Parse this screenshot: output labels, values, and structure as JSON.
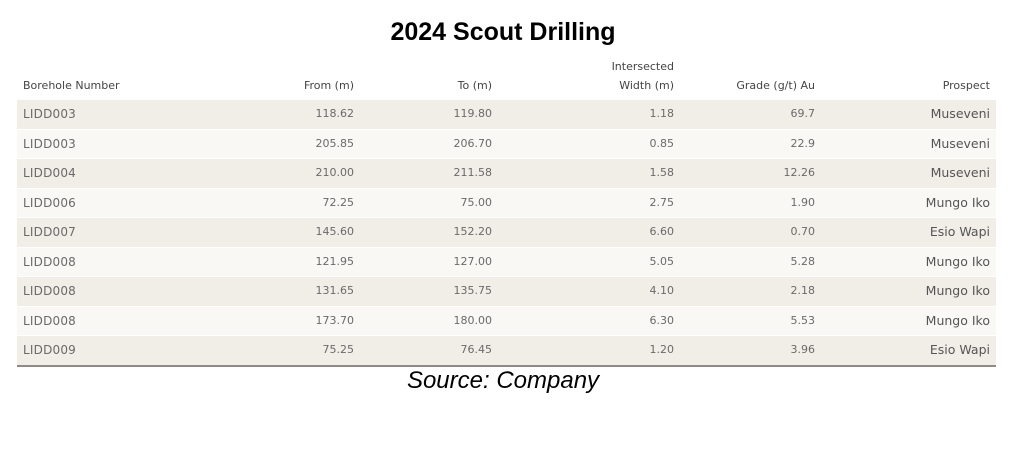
{
  "title": "2024 Scout Drilling",
  "headers": {
    "borehole": "Borehole Number",
    "from": "From (m)",
    "to": "To (m)",
    "width_line1": "Intersected",
    "width_line2": "Width (m)",
    "grade": "Grade (g/t) Au",
    "prospect": "Prospect"
  },
  "rows": [
    {
      "borehole": "LIDD003",
      "from": "118.62",
      "to": "119.80",
      "width": "1.18",
      "grade": "69.7",
      "prospect": "Museveni"
    },
    {
      "borehole": "LIDD003",
      "from": "205.85",
      "to": "206.70",
      "width": "0.85",
      "grade": "22.9",
      "prospect": "Museveni"
    },
    {
      "borehole": "LIDD004",
      "from": "210.00",
      "to": "211.58",
      "width": "1.58",
      "grade": "12.26",
      "prospect": "Museveni"
    },
    {
      "borehole": "LIDD006",
      "from": "72.25",
      "to": "75.00",
      "width": "2.75",
      "grade": "1.90",
      "prospect": "Mungo Iko"
    },
    {
      "borehole": "LIDD007",
      "from": "145.60",
      "to": "152.20",
      "width": "6.60",
      "grade": "0.70",
      "prospect": "Esio Wapi"
    },
    {
      "borehole": "LIDD008",
      "from": "121.95",
      "to": "127.00",
      "width": "5.05",
      "grade": "5.28",
      "prospect": "Mungo Iko"
    },
    {
      "borehole": "LIDD008",
      "from": "131.65",
      "to": "135.75",
      "width": "4.10",
      "grade": "2.18",
      "prospect": "Mungo Iko"
    },
    {
      "borehole": "LIDD008",
      "from": "173.70",
      "to": "180.00",
      "width": "6.30",
      "grade": "5.53",
      "prospect": "Mungo Iko"
    },
    {
      "borehole": "LIDD009",
      "from": "75.25",
      "to": "76.45",
      "width": "1.20",
      "grade": "3.96",
      "prospect": "Esio Wapi"
    }
  ],
  "source": "Source: Company"
}
